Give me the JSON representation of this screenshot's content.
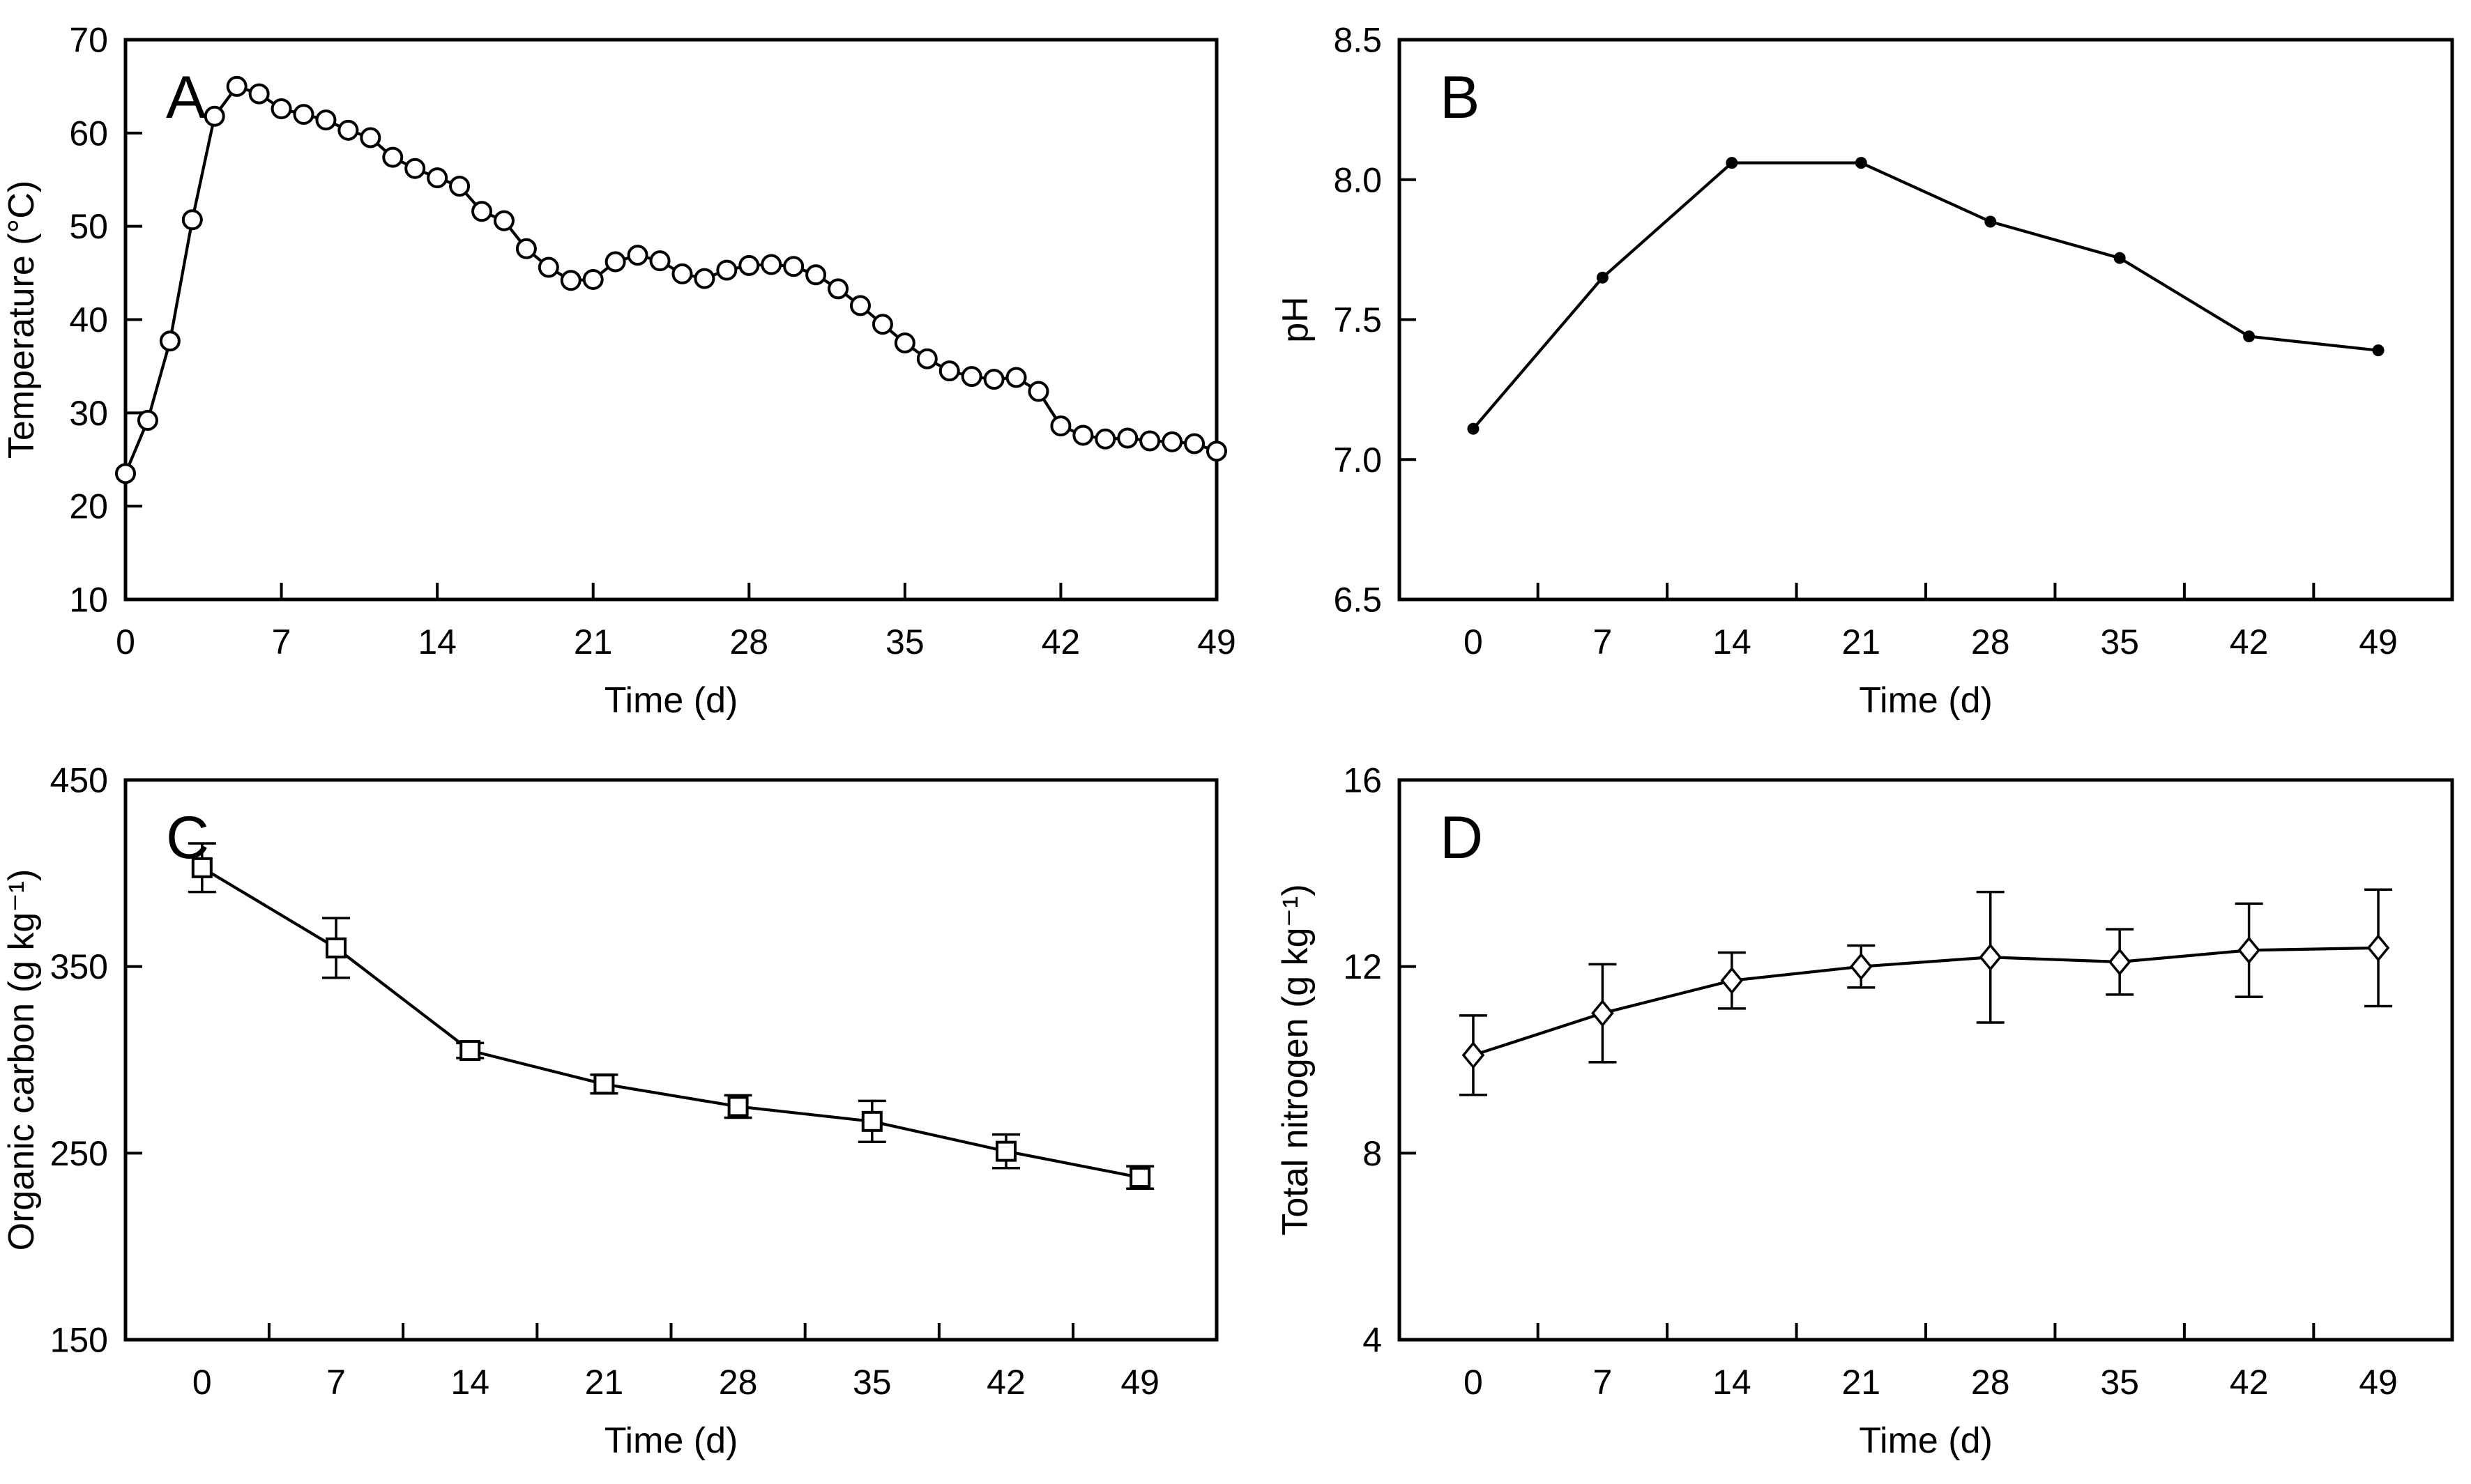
{
  "figure": {
    "description": "Four-panel composting time-series figure (A: temperature, B: pH, C: organic carbon, D: total nitrogen)",
    "background": "#ffffff",
    "ink_color": "#000000"
  },
  "chart_data": [
    {
      "id": "A",
      "type": "line",
      "panel_label": "A",
      "xlabel": "Time (d)",
      "ylabel": "Temperature (°C)",
      "marker": "circle-open",
      "x_range": [
        0,
        49
      ],
      "y_range": [
        10,
        70
      ],
      "x_ticks": [
        {
          "v": 0,
          "t": "0"
        },
        {
          "v": 7,
          "t": "7"
        },
        {
          "v": 14,
          "t": "14"
        },
        {
          "v": 21,
          "t": "21"
        },
        {
          "v": 28,
          "t": "28"
        },
        {
          "v": 35,
          "t": "35"
        },
        {
          "v": 42,
          "t": "42"
        },
        {
          "v": 49,
          "t": "49"
        }
      ],
      "x_tickmarks": [
        7,
        14,
        21,
        28,
        35,
        42,
        49
      ],
      "y_ticks": [
        {
          "v": 10,
          "t": "10"
        },
        {
          "v": 20,
          "t": "20"
        },
        {
          "v": 30,
          "t": "30"
        },
        {
          "v": 40,
          "t": "40"
        },
        {
          "v": 50,
          "t": "50"
        },
        {
          "v": 60,
          "t": "60"
        },
        {
          "v": 70,
          "t": "70"
        }
      ],
      "y_tickmarks": [
        20,
        30,
        40,
        50,
        60
      ],
      "x": [
        0,
        1,
        2,
        3,
        4,
        5,
        6,
        7,
        8,
        9,
        10,
        11,
        12,
        13,
        14,
        15,
        16,
        17,
        18,
        19,
        20,
        21,
        22,
        23,
        24,
        25,
        26,
        27,
        28,
        29,
        30,
        31,
        32,
        33,
        34,
        35,
        36,
        37,
        38,
        39,
        40,
        41,
        42,
        43,
        44,
        45,
        46,
        47,
        48,
        49
      ],
      "y": [
        23.5,
        29.2,
        37.7,
        50.7,
        61.8,
        65.0,
        64.2,
        62.6,
        62.0,
        61.4,
        60.3,
        59.5,
        57.4,
        56.2,
        55.2,
        54.3,
        51.6,
        50.6,
        47.6,
        45.6,
        44.2,
        44.3,
        46.2,
        46.9,
        46.3,
        44.9,
        44.4,
        45.3,
        45.8,
        45.9,
        45.7,
        44.8,
        43.3,
        41.5,
        39.5,
        37.5,
        35.8,
        34.5,
        33.9,
        33.6,
        33.8,
        32.3,
        28.6,
        27.6,
        27.2,
        27.3,
        27.0,
        26.9,
        26.7,
        25.9
      ]
    },
    {
      "id": "B",
      "type": "line",
      "panel_label": "B",
      "xlabel": "Time (d)",
      "ylabel": "pH",
      "marker": "dot",
      "x_range": [
        -4,
        53
      ],
      "y_range": [
        6.5,
        8.5
      ],
      "x_ticks": [
        {
          "v": 0,
          "t": "0"
        },
        {
          "v": 7,
          "t": "7"
        },
        {
          "v": 14,
          "t": "14"
        },
        {
          "v": 21,
          "t": "21"
        },
        {
          "v": 28,
          "t": "28"
        },
        {
          "v": 35,
          "t": "35"
        },
        {
          "v": 42,
          "t": "42"
        },
        {
          "v": 49,
          "t": "49"
        }
      ],
      "x_tickmarks": [
        3.5,
        10.5,
        17.5,
        24.5,
        31.5,
        38.5,
        45.5
      ],
      "y_ticks": [
        {
          "v": 6.5,
          "t": "6.5"
        },
        {
          "v": 7.0,
          "t": "7.0"
        },
        {
          "v": 7.5,
          "t": "7.5"
        },
        {
          "v": 8.0,
          "t": "8.0"
        },
        {
          "v": 8.5,
          "t": "8.5"
        }
      ],
      "y_tickmarks": [
        7.0,
        7.5,
        8.0
      ],
      "x": [
        0,
        7,
        14,
        21,
        28,
        35,
        42,
        49
      ],
      "y": [
        7.11,
        7.65,
        8.06,
        8.06,
        7.85,
        7.72,
        7.44,
        7.39
      ]
    },
    {
      "id": "C",
      "type": "line",
      "panel_label": "C",
      "xlabel": "Time (d)",
      "ylabel": "Organic carbon (g kg⁻¹)",
      "marker": "square-open",
      "x_range": [
        -4,
        53
      ],
      "y_range": [
        150,
        450
      ],
      "x_ticks": [
        {
          "v": 0,
          "t": "0"
        },
        {
          "v": 7,
          "t": "7"
        },
        {
          "v": 14,
          "t": "14"
        },
        {
          "v": 21,
          "t": "21"
        },
        {
          "v": 28,
          "t": "28"
        },
        {
          "v": 35,
          "t": "35"
        },
        {
          "v": 42,
          "t": "42"
        },
        {
          "v": 49,
          "t": "49"
        }
      ],
      "x_tickmarks": [
        3.5,
        10.5,
        17.5,
        24.5,
        31.5,
        38.5,
        45.5
      ],
      "y_ticks": [
        {
          "v": 150,
          "t": "150"
        },
        {
          "v": 250,
          "t": "250"
        },
        {
          "v": 350,
          "t": "350"
        },
        {
          "v": 450,
          "t": "450"
        }
      ],
      "y_tickmarks": [
        250,
        350
      ],
      "x": [
        0,
        7,
        14,
        21,
        28,
        35,
        42,
        49
      ],
      "y": [
        403,
        360,
        305,
        287,
        275,
        267,
        251,
        237
      ],
      "yerr": [
        13,
        16,
        4,
        5,
        6,
        11,
        9,
        6
      ]
    },
    {
      "id": "D",
      "type": "line",
      "panel_label": "D",
      "xlabel": "Time (d)",
      "ylabel": "Total nitrogen (g kg⁻¹)",
      "marker": "diamond-open",
      "x_range": [
        -4,
        53
      ],
      "y_range": [
        4,
        16
      ],
      "x_ticks": [
        {
          "v": 0,
          "t": "0"
        },
        {
          "v": 7,
          "t": "7"
        },
        {
          "v": 14,
          "t": "14"
        },
        {
          "v": 21,
          "t": "21"
        },
        {
          "v": 28,
          "t": "28"
        },
        {
          "v": 35,
          "t": "35"
        },
        {
          "v": 42,
          "t": "42"
        },
        {
          "v": 49,
          "t": "49"
        }
      ],
      "x_tickmarks": [
        3.5,
        10.5,
        17.5,
        24.5,
        31.5,
        38.5,
        45.5
      ],
      "y_ticks": [
        {
          "v": 4,
          "t": "4"
        },
        {
          "v": 8,
          "t": "8"
        },
        {
          "v": 12,
          "t": "12"
        },
        {
          "v": 16,
          "t": "16"
        }
      ],
      "y_tickmarks": [
        8,
        12
      ],
      "x": [
        0,
        7,
        14,
        21,
        28,
        35,
        42,
        49
      ],
      "y": [
        10.1,
        11.0,
        11.7,
        12.0,
        12.2,
        12.1,
        12.35,
        12.4
      ],
      "yerr": [
        0.85,
        1.05,
        0.6,
        0.45,
        1.4,
        0.7,
        1.0,
        1.25
      ]
    }
  ]
}
